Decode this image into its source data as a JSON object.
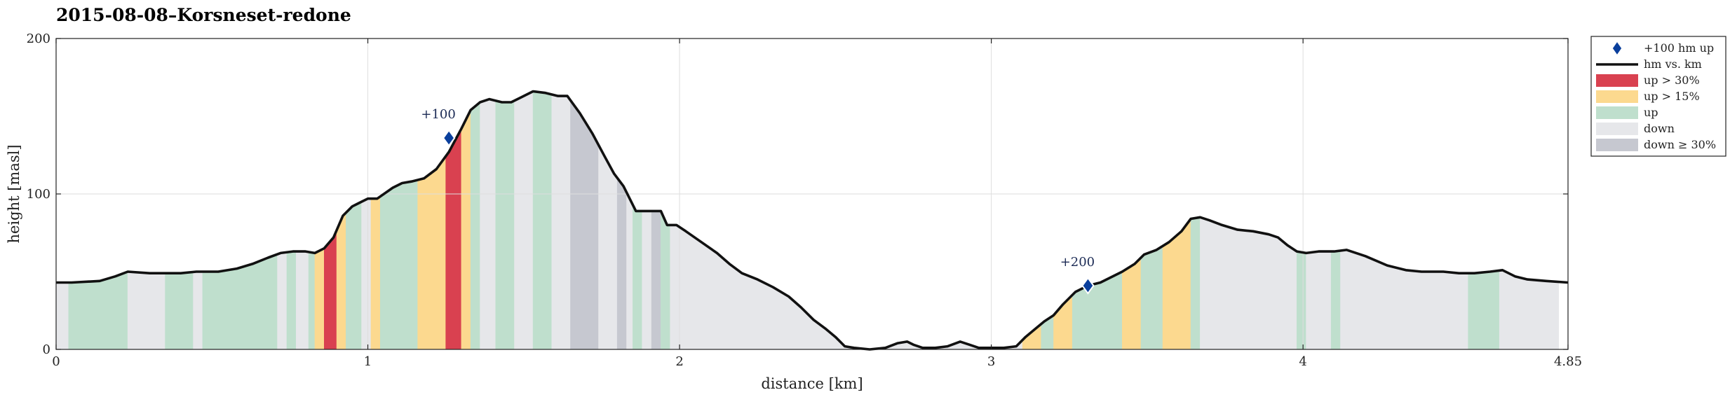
{
  "chart_data": {
    "type": "area",
    "title": "2015-08-08–Korsneset-redone",
    "xlabel": "distance [km]",
    "ylabel": "height [masl]",
    "xlim": [
      0,
      4.85
    ],
    "ylim": [
      0,
      200
    ],
    "xticks": [
      "0",
      "1",
      "2",
      "3",
      "4",
      "4.85"
    ],
    "yticks": [
      "0",
      "100",
      "200"
    ],
    "grid": true,
    "legend_position": "outside-right-top",
    "colors": {
      "line": "#111111",
      "marker": "#0a3f9c",
      "up30": "#d94150",
      "up15": "#fcd98f",
      "up": "#bfdfcd",
      "down": "#e6e7ea",
      "down30": "#c6c8d0",
      "grid": "#dedede"
    },
    "legend": [
      {
        "key": "marker",
        "label": "+100 hm up"
      },
      {
        "key": "line",
        "label": "hm vs. km"
      },
      {
        "key": "up30",
        "label": "up > 30%"
      },
      {
        "key": "up15",
        "label": "up > 15%"
      },
      {
        "key": "up",
        "label": "up"
      },
      {
        "key": "down",
        "label": "down"
      },
      {
        "key": "down30",
        "label": "down ≥ 30%"
      }
    ],
    "markers": [
      {
        "x": 1.26,
        "y": 136,
        "label": "+100"
      },
      {
        "x": 3.31,
        "y": 41,
        "label": "+200"
      }
    ],
    "profile": [
      [
        0.0,
        43
      ],
      [
        0.05,
        43
      ],
      [
        0.14,
        44
      ],
      [
        0.19,
        47
      ],
      [
        0.23,
        50
      ],
      [
        0.3,
        49
      ],
      [
        0.4,
        49
      ],
      [
        0.45,
        50
      ],
      [
        0.52,
        50
      ],
      [
        0.58,
        52
      ],
      [
        0.63,
        55
      ],
      [
        0.68,
        59
      ],
      [
        0.72,
        62
      ],
      [
        0.76,
        63
      ],
      [
        0.8,
        63
      ],
      [
        0.83,
        62
      ],
      [
        0.86,
        65
      ],
      [
        0.89,
        72
      ],
      [
        0.92,
        86
      ],
      [
        0.95,
        92
      ],
      [
        0.98,
        95
      ],
      [
        1.0,
        97
      ],
      [
        1.03,
        97
      ],
      [
        1.08,
        104
      ],
      [
        1.11,
        107
      ],
      [
        1.14,
        108
      ],
      [
        1.18,
        110
      ],
      [
        1.22,
        116
      ],
      [
        1.26,
        127
      ],
      [
        1.3,
        142
      ],
      [
        1.33,
        154
      ],
      [
        1.36,
        159
      ],
      [
        1.39,
        161
      ],
      [
        1.43,
        159
      ],
      [
        1.46,
        159
      ],
      [
        1.49,
        162
      ],
      [
        1.53,
        166
      ],
      [
        1.57,
        165
      ],
      [
        1.61,
        163
      ],
      [
        1.64,
        163
      ],
      [
        1.68,
        152
      ],
      [
        1.72,
        139
      ],
      [
        1.76,
        124
      ],
      [
        1.79,
        113
      ],
      [
        1.82,
        105
      ],
      [
        1.86,
        89
      ],
      [
        1.9,
        89
      ],
      [
        1.94,
        89
      ],
      [
        1.96,
        80
      ],
      [
        1.99,
        80
      ],
      [
        2.02,
        76
      ],
      [
        2.07,
        69
      ],
      [
        2.12,
        62
      ],
      [
        2.16,
        55
      ],
      [
        2.2,
        49
      ],
      [
        2.25,
        45
      ],
      [
        2.3,
        40
      ],
      [
        2.35,
        34
      ],
      [
        2.39,
        27
      ],
      [
        2.43,
        19
      ],
      [
        2.47,
        13
      ],
      [
        2.5,
        8
      ],
      [
        2.53,
        2
      ],
      [
        2.56,
        1
      ],
      [
        2.61,
        0
      ],
      [
        2.66,
        1
      ],
      [
        2.7,
        4
      ],
      [
        2.73,
        5
      ],
      [
        2.75,
        3
      ],
      [
        2.78,
        1
      ],
      [
        2.82,
        1
      ],
      [
        2.86,
        2
      ],
      [
        2.9,
        5
      ],
      [
        2.93,
        3
      ],
      [
        2.96,
        1
      ],
      [
        3.0,
        1
      ],
      [
        3.04,
        1
      ],
      [
        3.08,
        2
      ],
      [
        3.11,
        8
      ],
      [
        3.14,
        13
      ],
      [
        3.17,
        18
      ],
      [
        3.2,
        22
      ],
      [
        3.23,
        29
      ],
      [
        3.27,
        37
      ],
      [
        3.31,
        41
      ],
      [
        3.35,
        43
      ],
      [
        3.38,
        46
      ],
      [
        3.42,
        50
      ],
      [
        3.46,
        55
      ],
      [
        3.49,
        61
      ],
      [
        3.53,
        64
      ],
      [
        3.57,
        69
      ],
      [
        3.61,
        76
      ],
      [
        3.64,
        84
      ],
      [
        3.67,
        85
      ],
      [
        3.7,
        83
      ],
      [
        3.74,
        80
      ],
      [
        3.79,
        77
      ],
      [
        3.84,
        76
      ],
      [
        3.89,
        74
      ],
      [
        3.92,
        72
      ],
      [
        3.95,
        67
      ],
      [
        3.98,
        63
      ],
      [
        4.01,
        62
      ],
      [
        4.05,
        63
      ],
      [
        4.1,
        63
      ],
      [
        4.14,
        64
      ],
      [
        4.2,
        60
      ],
      [
        4.27,
        54
      ],
      [
        4.33,
        51
      ],
      [
        4.38,
        50
      ],
      [
        4.45,
        50
      ],
      [
        4.5,
        49
      ],
      [
        4.55,
        49
      ],
      [
        4.6,
        50
      ],
      [
        4.64,
        51
      ],
      [
        4.68,
        47
      ],
      [
        4.72,
        45
      ],
      [
        4.78,
        44
      ],
      [
        4.85,
        43
      ]
    ],
    "segments": [
      {
        "x0": 0.0,
        "x1": 0.04,
        "cat": "down"
      },
      {
        "x0": 0.04,
        "x1": 0.23,
        "cat": "up"
      },
      {
        "x0": 0.23,
        "x1": 0.35,
        "cat": "down"
      },
      {
        "x0": 0.35,
        "x1": 0.44,
        "cat": "up"
      },
      {
        "x0": 0.44,
        "x1": 0.47,
        "cat": "down"
      },
      {
        "x0": 0.47,
        "x1": 0.71,
        "cat": "up"
      },
      {
        "x0": 0.71,
        "x1": 0.74,
        "cat": "down"
      },
      {
        "x0": 0.74,
        "x1": 0.77,
        "cat": "up"
      },
      {
        "x0": 0.77,
        "x1": 0.81,
        "cat": "down"
      },
      {
        "x0": 0.81,
        "x1": 0.83,
        "cat": "up"
      },
      {
        "x0": 0.83,
        "x1": 0.86,
        "cat": "up15"
      },
      {
        "x0": 0.86,
        "x1": 0.9,
        "cat": "up30"
      },
      {
        "x0": 0.9,
        "x1": 0.93,
        "cat": "up15"
      },
      {
        "x0": 0.93,
        "x1": 0.98,
        "cat": "up"
      },
      {
        "x0": 0.98,
        "x1": 1.01,
        "cat": "down"
      },
      {
        "x0": 1.01,
        "x1": 1.04,
        "cat": "up15"
      },
      {
        "x0": 1.04,
        "x1": 1.16,
        "cat": "up"
      },
      {
        "x0": 1.16,
        "x1": 1.25,
        "cat": "up15"
      },
      {
        "x0": 1.25,
        "x1": 1.3,
        "cat": "up30"
      },
      {
        "x0": 1.3,
        "x1": 1.33,
        "cat": "up15"
      },
      {
        "x0": 1.33,
        "x1": 1.36,
        "cat": "up"
      },
      {
        "x0": 1.36,
        "x1": 1.41,
        "cat": "down"
      },
      {
        "x0": 1.41,
        "x1": 1.47,
        "cat": "up"
      },
      {
        "x0": 1.47,
        "x1": 1.53,
        "cat": "down"
      },
      {
        "x0": 1.53,
        "x1": 1.59,
        "cat": "up"
      },
      {
        "x0": 1.59,
        "x1": 1.65,
        "cat": "down"
      },
      {
        "x0": 1.65,
        "x1": 1.74,
        "cat": "down30"
      },
      {
        "x0": 1.74,
        "x1": 1.8,
        "cat": "down"
      },
      {
        "x0": 1.8,
        "x1": 1.83,
        "cat": "down30"
      },
      {
        "x0": 1.83,
        "x1": 1.85,
        "cat": "down"
      },
      {
        "x0": 1.85,
        "x1": 1.88,
        "cat": "up"
      },
      {
        "x0": 1.88,
        "x1": 1.91,
        "cat": "down"
      },
      {
        "x0": 1.91,
        "x1": 1.94,
        "cat": "down30"
      },
      {
        "x0": 1.94,
        "x1": 1.97,
        "cat": "up"
      },
      {
        "x0": 1.97,
        "x1": 3.1,
        "cat": "down"
      },
      {
        "x0": 3.1,
        "x1": 3.16,
        "cat": "up15"
      },
      {
        "x0": 3.16,
        "x1": 3.2,
        "cat": "up"
      },
      {
        "x0": 3.2,
        "x1": 3.26,
        "cat": "up15"
      },
      {
        "x0": 3.26,
        "x1": 3.42,
        "cat": "up"
      },
      {
        "x0": 3.42,
        "x1": 3.48,
        "cat": "up15"
      },
      {
        "x0": 3.48,
        "x1": 3.55,
        "cat": "up"
      },
      {
        "x0": 3.55,
        "x1": 3.64,
        "cat": "up15"
      },
      {
        "x0": 3.64,
        "x1": 3.67,
        "cat": "up"
      },
      {
        "x0": 3.67,
        "x1": 3.98,
        "cat": "down"
      },
      {
        "x0": 3.98,
        "x1": 4.01,
        "cat": "up"
      },
      {
        "x0": 4.01,
        "x1": 4.09,
        "cat": "down"
      },
      {
        "x0": 4.09,
        "x1": 4.12,
        "cat": "up"
      },
      {
        "x0": 4.12,
        "x1": 4.53,
        "cat": "down"
      },
      {
        "x0": 4.53,
        "x1": 4.63,
        "cat": "up"
      },
      {
        "x0": 4.63,
        "x1": 4.82,
        "cat": "down"
      }
    ]
  }
}
